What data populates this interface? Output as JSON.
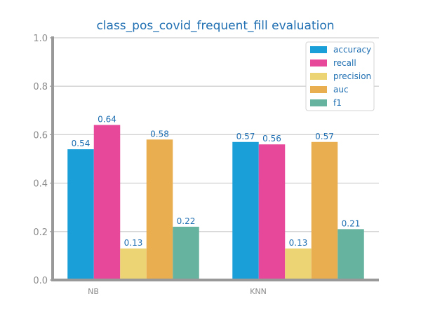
{
  "chart_data": {
    "type": "bar",
    "title": "class_pos_covid_frequent_fill evaluation",
    "xlabel": "",
    "ylabel": "",
    "categories": [
      "NB",
      "KNN"
    ],
    "ylim": [
      0,
      1.0
    ],
    "yticks": [
      "0.0",
      "0.2",
      "0.4",
      "0.6",
      "0.8",
      "1.0"
    ],
    "grid": true,
    "legend_position": "top-right",
    "series": [
      {
        "name": "accuracy",
        "color": "#1a9fd9",
        "values": [
          0.54,
          0.57
        ],
        "labels": [
          "0.54",
          "0.57"
        ]
      },
      {
        "name": "recall",
        "color": "#e8489a",
        "values": [
          0.64,
          0.56
        ],
        "labels": [
          "0.64",
          "0.56"
        ]
      },
      {
        "name": "precision",
        "color": "#ecd373",
        "values": [
          0.13,
          0.13
        ],
        "labels": [
          "0.13",
          "0.13"
        ]
      },
      {
        "name": "auc",
        "color": "#e9ae4f",
        "values": [
          0.58,
          0.57
        ],
        "labels": [
          "0.58",
          "0.57"
        ]
      },
      {
        "name": "f1",
        "color": "#66b39f",
        "values": [
          0.22,
          0.21
        ],
        "labels": [
          "0.22",
          "0.21"
        ]
      }
    ]
  }
}
